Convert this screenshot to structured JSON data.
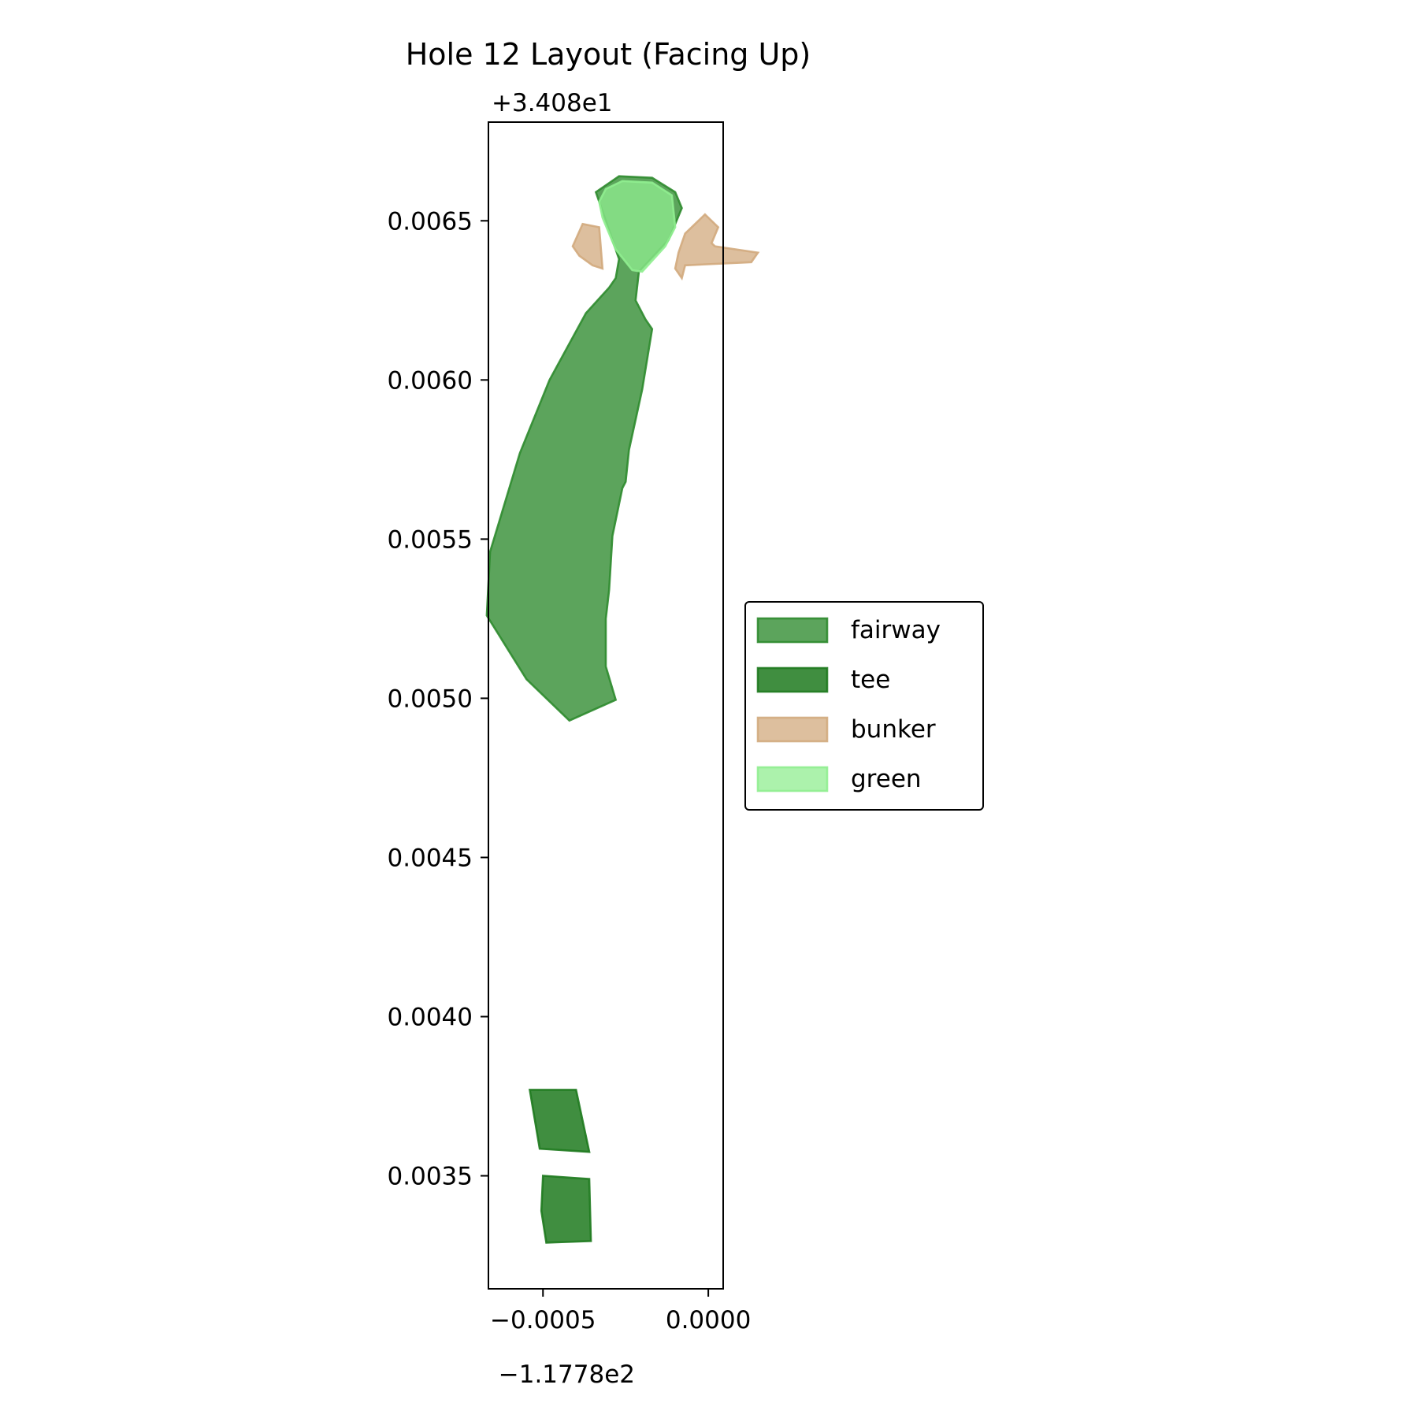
{
  "chart_data": {
    "type": "area",
    "title": "Hole 12 Layout (Facing Up)",
    "xlabel": "",
    "ylabel": "",
    "x_offset_label": "−1.1778e2",
    "y_offset_label": "+3.408e1",
    "xlim": [
      -0.000665,
      4.5e-05
    ],
    "ylim": [
      0.003145,
      0.00681
    ],
    "x_ticks": [
      {
        "value": -0.0005,
        "label": "−0.0005"
      },
      {
        "value": 0.0,
        "label": "0.0000"
      }
    ],
    "y_ticks": [
      {
        "value": 0.0035,
        "label": "0.0035"
      },
      {
        "value": 0.004,
        "label": "0.0040"
      },
      {
        "value": 0.0045,
        "label": "0.0045"
      },
      {
        "value": 0.005,
        "label": "0.0050"
      },
      {
        "value": 0.0055,
        "label": "0.0055"
      },
      {
        "value": 0.006,
        "label": "0.0060"
      },
      {
        "value": 0.0065,
        "label": "0.0065"
      }
    ],
    "grid": false,
    "legend_position": "outside-right",
    "series": [
      {
        "name": "fairway",
        "fill": "#2e8b2e",
        "edge": "#2e8b2e",
        "fill_opacity": 0.78,
        "polygons": [
          [
            [
              -0.00034,
              0.00659
            ],
            [
              -0.00027,
              0.00664
            ],
            [
              -0.00017,
              0.006635
            ],
            [
              -0.0001,
              0.00659
            ],
            [
              -8e-05,
              0.00654
            ],
            [
              -0.00012,
              0.00644
            ],
            [
              -0.00021,
              0.00634
            ],
            [
              -0.00022,
              0.00625
            ],
            [
              -0.00019,
              0.00619
            ],
            [
              -0.00017,
              0.00616
            ],
            [
              -0.0002,
              0.00597
            ],
            [
              -0.00024,
              0.00578
            ],
            [
              -0.00025,
              0.00568
            ],
            [
              -0.00026,
              0.00566
            ],
            [
              -0.00029,
              0.00551
            ],
            [
              -0.0003,
              0.00534
            ],
            [
              -0.00031,
              0.00525
            ],
            [
              -0.00031,
              0.0051
            ],
            [
              -0.00028,
              0.004995
            ],
            [
              -0.00042,
              0.00493
            ],
            [
              -0.00055,
              0.00506
            ],
            [
              -0.00067,
              0.00526
            ],
            [
              -0.00066,
              0.00546
            ],
            [
              -0.00057,
              0.00577
            ],
            [
              -0.00048,
              0.006
            ],
            [
              -0.00037,
              0.00621
            ],
            [
              -0.0003,
              0.00629
            ],
            [
              -0.00028,
              0.00632
            ],
            [
              -0.00027,
              0.00638
            ],
            [
              -0.0003,
              0.00647
            ],
            [
              -0.00032,
              0.00653
            ]
          ]
        ]
      },
      {
        "name": "tee",
        "fill": "#1e7a1e",
        "edge": "#1e7a1e",
        "fill_opacity": 0.85,
        "polygons": [
          [
            [
              -0.00054,
              0.00377
            ],
            [
              -0.0004,
              0.00377
            ],
            [
              -0.00036,
              0.003575
            ],
            [
              -0.00051,
              0.003585
            ]
          ],
          [
            [
              -0.0005,
              0.0035
            ],
            [
              -0.00036,
              0.00349
            ],
            [
              -0.000355,
              0.003295
            ],
            [
              -0.00049,
              0.00329
            ],
            [
              -0.000505,
              0.00339
            ]
          ]
        ]
      },
      {
        "name": "bunker",
        "fill": "#d2aa7d",
        "edge": "#d2aa7d",
        "fill_opacity": 0.75,
        "polygons": [
          [
            [
              -0.00038,
              0.00649
            ],
            [
              -0.00033,
              0.00648
            ],
            [
              -0.00032,
              0.00635
            ],
            [
              -0.00035,
              0.00636
            ],
            [
              -0.00039,
              0.00639
            ],
            [
              -0.00041,
              0.00642
            ]
          ],
          [
            [
              -7e-05,
              0.00646
            ],
            [
              -1e-05,
              0.00652
            ],
            [
              3e-05,
              0.00648
            ],
            [
              1e-05,
              0.00643
            ],
            [
              2e-05,
              0.00642
            ],
            [
              0.00015,
              0.0064
            ],
            [
              0.00013,
              0.00637
            ],
            [
              -7e-05,
              0.00636
            ],
            [
              -8e-05,
              0.00632
            ],
            [
              -0.0001,
              0.00635
            ],
            [
              -9e-05,
              0.0064
            ]
          ]
        ]
      },
      {
        "name": "green",
        "fill": "#90ee90",
        "edge": "#90ee90",
        "fill_opacity": 0.75,
        "polygons": [
          [
            [
              -0.00031,
              0.0066
            ],
            [
              -0.00026,
              0.006625
            ],
            [
              -0.00017,
              0.00662
            ],
            [
              -0.00011,
              0.00658
            ],
            [
              -0.0001,
              0.00648
            ],
            [
              -0.00013,
              0.00642
            ],
            [
              -0.0002,
              0.00634
            ],
            [
              -0.00023,
              0.006345
            ],
            [
              -0.00028,
              0.00641
            ],
            [
              -0.00032,
              0.00651
            ],
            [
              -0.00033,
              0.00656
            ]
          ]
        ]
      }
    ]
  }
}
